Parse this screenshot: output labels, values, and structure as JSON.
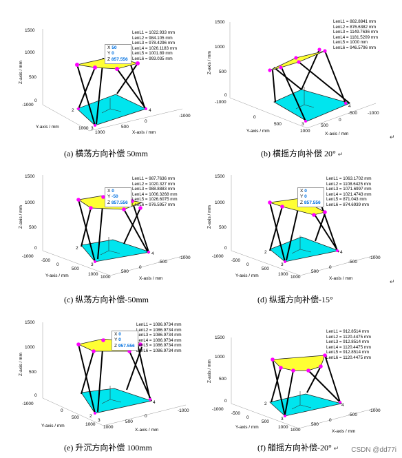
{
  "panels": [
    {
      "caption": "(a) 横荡方向补偿 50mm",
      "len": [
        "LenL1 = 1022.933 mm",
        "LenL2 = 984.105 mm",
        "LenL3 = 978.4296 mm",
        "LenL4 = 1026.1183 mm",
        "LenL5 = 1001.89 mm",
        "LenL6 = 993.035 mm"
      ],
      "tip": {
        "x": "50",
        "y": "0",
        "z": "857.556"
      },
      "zticks": [
        "1500",
        "1000",
        "500",
        "0"
      ],
      "xlabel": "X-axis / mm",
      "ylabel": "Y-axis / mm",
      "zlabel": "Z-axis / mm",
      "xticks": [
        "-1000",
        "0",
        "500",
        "1000"
      ],
      "yticks": [
        "-1000",
        "2",
        "1000"
      ],
      "corner_nums": [
        "2",
        "3",
        "4"
      ]
    },
    {
      "caption": "(b) 横摇方向补偿 20°",
      "len": [
        "LenL1 = 882.8841 mm",
        "LenL2 = 876.6382 mm",
        "LenL3 = 1149.7636 mm",
        "LenL4 = 1181.5209 mm",
        "LenL5 = 1000 mm",
        "LenL6 = 946.5796 mm"
      ],
      "tip": null,
      "zticks": [
        "1500",
        "1000",
        "500",
        "0"
      ],
      "xlabel": "X-axis / mm",
      "ylabel": "Y-axis / mm",
      "zlabel": "Z-axis / mm",
      "xticks": [
        "-1000",
        "-500",
        "0",
        "500",
        "1000"
      ],
      "yticks": [
        "-1000",
        "0",
        "500"
      ],
      "corner_nums": [
        "3",
        "4"
      ]
    },
    {
      "caption": "(c) 纵荡方向补偿-50mm",
      "len": [
        "LenL1 = 987.7636 mm",
        "LenL2 = 1020.327 mm",
        "LenL3 = 988.8883 mm",
        "LenL4 = 1006.3268 mm",
        "LenL5 = 1026.6075 mm",
        "LenL6 = 976.5957 mm"
      ],
      "tip": {
        "x": "0",
        "y": "-50",
        "z": "857.556"
      },
      "zticks": [
        "1500",
        "1000",
        "500",
        "0"
      ],
      "xlabel": "X-axis / mm",
      "ylabel": "Y-axis / mm",
      "zlabel": "Z-axis / mm",
      "xticks": [
        "-1000",
        "-500",
        "0",
        "500",
        "1000"
      ],
      "yticks": [
        "-1000",
        "-500",
        "0",
        "500",
        "1000"
      ],
      "corner_nums": [
        "2",
        "3",
        "4"
      ]
    },
    {
      "caption": "(d) 纵摇方向补偿-15°",
      "len": [
        "LenL1 = 1063.1702 mm",
        "LenL2 = 1108.6425 mm",
        "LenL3 = 1071.6997 mm",
        "LenL4 = 1021.4743 mm",
        "LenL5 = 871.043 mm",
        "LenL6 = 874.6939 mm"
      ],
      "tip": {
        "x": "0",
        "y": "0",
        "z": "857.556"
      },
      "zticks": [
        "1500",
        "1000",
        "500",
        "0"
      ],
      "xlabel": "X-axis / mm",
      "ylabel": "Y-axis / mm",
      "zlabel": "Z-axis / mm",
      "xticks": [
        "-1000",
        "-500",
        "0",
        "500",
        "1000"
      ],
      "yticks": [
        "-1000",
        "-500",
        "0",
        "500",
        "1000"
      ],
      "corner_nums": [
        "2",
        "3",
        "4"
      ]
    },
    {
      "caption": "(e) 升沉方向补偿 100mm",
      "len": [
        "LenL1 = 1086.9734 mm",
        "LenL2 = 1086.9734 mm",
        "LenL3 = 1086.9734 mm",
        "LenL4 = 1086.9734 mm",
        "LenL5 = 1086.9734 mm",
        "LenL6 = 1086.9734 mm"
      ],
      "tip": {
        "x": "0",
        "y": "0",
        "z": "957.556"
      },
      "zticks": [
        "1500",
        "1000",
        "500",
        "0"
      ],
      "xlabel": "X-axis / mm",
      "ylabel": "Y-axis / mm",
      "zlabel": "Z-axis / mm",
      "xticks": [
        "-1000",
        "0",
        "500",
        "1000"
      ],
      "yticks": [
        "-1000",
        "0",
        "500",
        "1000"
      ],
      "corner_nums": [
        "2",
        "3",
        "4"
      ]
    },
    {
      "caption": "(f) 艏摇方向补偿-20°",
      "len": [
        "LenL1 = 912.8514 mm",
        "LenL2 = 1120.4475 mm",
        "LenL3 = 912.8514 mm",
        "LenL4 = 1120.4475 mm",
        "LenL5 = 912.8514 mm",
        "LenL6 = 1120.4475 mm"
      ],
      "tip": null,
      "zticks": [
        "1500",
        "1000",
        "500",
        "0"
      ],
      "xlabel": "X-axis / mm",
      "ylabel": "Y-axis / mm",
      "zlabel": "Z-axis / mm",
      "xticks": [
        "-1000",
        "-500",
        "0",
        "500",
        "1000"
      ],
      "yticks": [
        "-1000",
        "-500",
        "0",
        "500",
        "1000"
      ],
      "corner_nums": [
        "2",
        "3",
        "4"
      ]
    }
  ],
  "tip_labels": {
    "x": "X",
    "y": "Y",
    "z": "Z"
  },
  "return_mark": "↵",
  "watermark": "CSDN @dd77i",
  "colors": {
    "top": "#ffff33",
    "base": "#00e5ee",
    "joint": "#ff00ff",
    "leg": "#000000"
  }
}
